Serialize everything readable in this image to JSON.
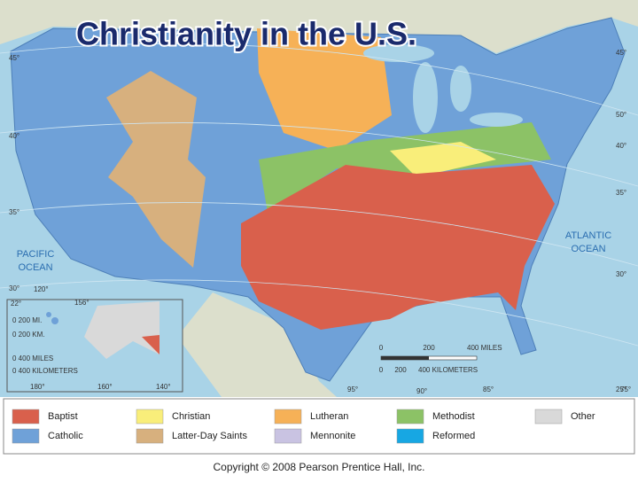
{
  "title": "Christianity in the U.S.",
  "map_labels": {
    "pacific": [
      "PACIFIC",
      "OCEAN"
    ],
    "atlantic": [
      "ATLANTIC",
      "OCEAN"
    ]
  },
  "latitudes_left": [
    "45°",
    "40°",
    "35°",
    "30°"
  ],
  "latitudes_right": [
    "50°",
    "45°",
    "40°",
    "35°",
    "30°",
    "25°"
  ],
  "longitudes": [
    "95°",
    "90°",
    "85°",
    "75°"
  ],
  "inset_labels": [
    "22°",
    "156°",
    "120°",
    "180°",
    "160°",
    "140°"
  ],
  "scale": {
    "miles": [
      "0",
      "200",
      "400 MILES"
    ],
    "kilometers": [
      "0",
      "200",
      "400 KILOMETERS"
    ]
  },
  "inset_scale": {
    "hawaii_miles": "0      200 MI.",
    "hawaii_km": "0      200 KM.",
    "alaska_miles": "0      400 MILES",
    "alaska_km": "0      400 KILOMETERS"
  },
  "legend": {
    "items": [
      {
        "label": "Baptist",
        "color": "#d9604c"
      },
      {
        "label": "Christian",
        "color": "#f9ee7a"
      },
      {
        "label": "Lutheran",
        "color": "#f6b157"
      },
      {
        "label": "Methodist",
        "color": "#8cc266"
      },
      {
        "label": "Other",
        "color": "#d9d9d9"
      },
      {
        "label": "Catholic",
        "color": "#6fa1d8"
      },
      {
        "label": "Latter-Day Saints",
        "color": "#d7b07e"
      },
      {
        "label": "Mennonite",
        "color": "#c9c3e2"
      },
      {
        "label": "Reformed",
        "color": "#17a7e3"
      }
    ]
  },
  "copyright": "Copyright © 2008 Pearson Prentice Hall, Inc."
}
